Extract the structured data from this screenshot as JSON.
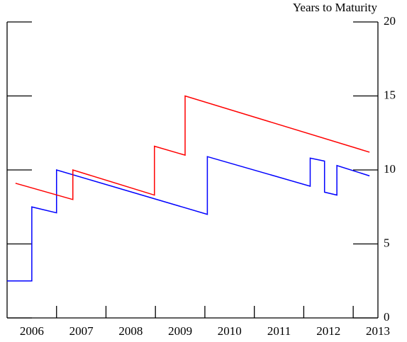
{
  "chart_data": {
    "type": "line",
    "y_label": "Years to Maturity",
    "xlim": [
      2006,
      2013.5
    ],
    "xticks": [
      {
        "value": 2006.5,
        "label": "2006"
      },
      {
        "value": 2007.5,
        "label": "2007"
      },
      {
        "value": 2008.5,
        "label": "2008"
      },
      {
        "value": 2009.5,
        "label": "2009"
      },
      {
        "value": 2010.5,
        "label": "2010"
      },
      {
        "value": 2011.5,
        "label": "2011"
      },
      {
        "value": 2012.5,
        "label": "2012"
      },
      {
        "value": 2013.5,
        "label": "2013"
      }
    ],
    "ylim": [
      0,
      20
    ],
    "yticks": [
      0,
      5,
      10,
      15,
      20
    ],
    "series": [
      {
        "color": "#0000ff",
        "x": [
          2006.0,
          2006.5,
          2006.5,
          2007.0,
          2007.0,
          2010.05,
          2010.05,
          2012.13,
          2012.13,
          2012.42,
          2012.42,
          2012.67,
          2012.67,
          2013.33
        ],
        "values": [
          2.5,
          2.5,
          7.5,
          7.1,
          10.0,
          7.0,
          10.9,
          8.9,
          10.8,
          10.6,
          8.5,
          8.3,
          10.3,
          9.6
        ]
      },
      {
        "color": "#ff0000",
        "x": [
          2006.17,
          2007.33,
          2007.33,
          2008.98,
          2008.98,
          2009.6,
          2009.6,
          2013.33
        ],
        "values": [
          9.1,
          8.0,
          10.0,
          8.3,
          11.6,
          11.0,
          15.0,
          11.2
        ]
      }
    ]
  }
}
